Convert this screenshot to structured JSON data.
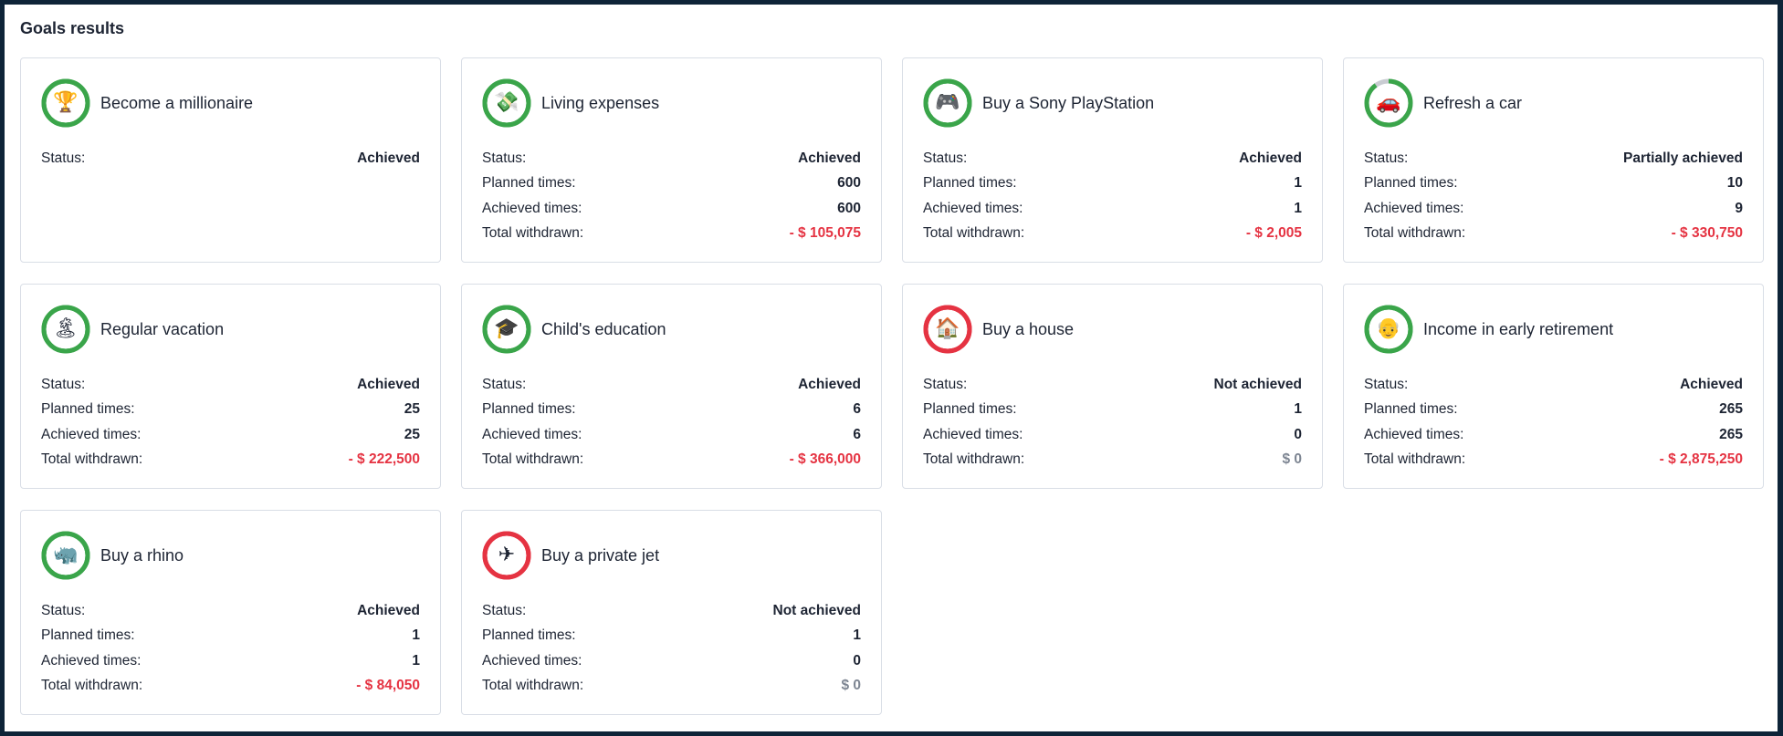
{
  "title": "Goals results",
  "labels": {
    "status": "Status:",
    "planned": "Planned times:",
    "achieved": "Achieved times:",
    "withdrawn": "Total withdrawn:"
  },
  "colors": {
    "achieved": "#3aa54a",
    "not_achieved": "#e53342",
    "track": "#c9ccd2",
    "negative_amount": "#e53342",
    "zero_amount": "#7d8592"
  },
  "goals": [
    {
      "title": "Become a millionaire",
      "icon": "trophy-icon",
      "glyph": "🏆",
      "progress": 1.0,
      "ring": "achieved",
      "status": "Achieved"
    },
    {
      "title": "Living expenses",
      "icon": "money-icon",
      "glyph": "💸",
      "progress": 1.0,
      "ring": "achieved",
      "status": "Achieved",
      "planned": "600",
      "achieved": "600",
      "withdrawn": "- $ 105,075",
      "withdrawn_kind": "neg"
    },
    {
      "title": "Buy a Sony PlayStation",
      "icon": "gamepad-icon",
      "glyph": "🎮",
      "progress": 1.0,
      "ring": "achieved",
      "status": "Achieved",
      "planned": "1",
      "achieved": "1",
      "withdrawn": "- $ 2,005",
      "withdrawn_kind": "neg"
    },
    {
      "title": "Refresh a car",
      "icon": "car-icon",
      "glyph": "🚗",
      "progress": 0.9,
      "ring": "achieved",
      "status": "Partially achieved",
      "planned": "10",
      "achieved": "9",
      "withdrawn": "- $ 330,750",
      "withdrawn_kind": "neg"
    },
    {
      "title": "Regular vacation",
      "icon": "island-icon",
      "glyph": "🏝",
      "progress": 1.0,
      "ring": "achieved",
      "status": "Achieved",
      "planned": "25",
      "achieved": "25",
      "withdrawn": "- $ 222,500",
      "withdrawn_kind": "neg"
    },
    {
      "title": "Child's education",
      "icon": "graduation-cap-icon",
      "glyph": "🎓",
      "progress": 1.0,
      "ring": "achieved",
      "status": "Achieved",
      "planned": "6",
      "achieved": "6",
      "withdrawn": "- $ 366,000",
      "withdrawn_kind": "neg"
    },
    {
      "title": "Buy a house",
      "icon": "house-icon",
      "glyph": "🏠",
      "progress": 1.0,
      "ring": "not_achieved",
      "status": "Not achieved",
      "planned": "1",
      "achieved": "0",
      "withdrawn": "$ 0",
      "withdrawn_kind": "zero"
    },
    {
      "title": "Income in early retirement",
      "icon": "elder-face-icon",
      "glyph": "👴",
      "progress": 1.0,
      "ring": "achieved",
      "status": "Achieved",
      "planned": "265",
      "achieved": "265",
      "withdrawn": "- $ 2,875,250",
      "withdrawn_kind": "neg"
    },
    {
      "title": "Buy a rhino",
      "icon": "rhino-icon",
      "glyph": "🦏",
      "progress": 1.0,
      "ring": "achieved",
      "status": "Achieved",
      "planned": "1",
      "achieved": "1",
      "withdrawn": "- $ 84,050",
      "withdrawn_kind": "neg"
    },
    {
      "title": "Buy a private jet",
      "icon": "airplane-icon",
      "glyph": "✈",
      "progress": 1.0,
      "ring": "not_achieved",
      "status": "Not achieved",
      "planned": "1",
      "achieved": "0",
      "withdrawn": "$ 0",
      "withdrawn_kind": "zero"
    }
  ]
}
